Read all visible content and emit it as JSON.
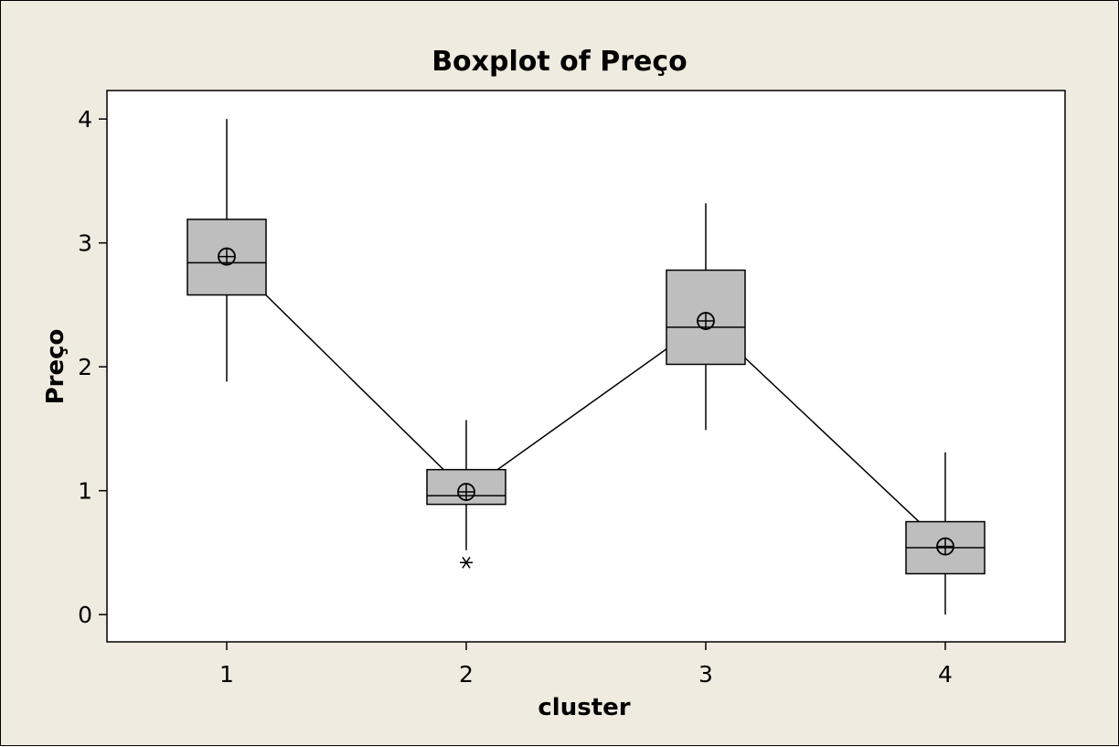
{
  "chart_data": {
    "type": "boxplot",
    "title": "Boxplot of Preço",
    "xlabel": "cluster",
    "ylabel": "Preço",
    "categories": [
      "1",
      "2",
      "3",
      "4"
    ],
    "ylim": [
      -0.22,
      4.23
    ],
    "y_ticks": [
      "0",
      "1",
      "2",
      "3",
      "4"
    ],
    "boxes": [
      {
        "category": "1",
        "whisker_low": 1.88,
        "q1": 2.58,
        "median": 2.84,
        "q3": 3.19,
        "whisker_high": 4.0,
        "mean": 2.89,
        "outliers": []
      },
      {
        "category": "2",
        "whisker_low": 0.52,
        "q1": 0.89,
        "median": 0.96,
        "q3": 1.17,
        "whisker_high": 1.57,
        "mean": 0.99,
        "outliers": [
          0.42
        ]
      },
      {
        "category": "3",
        "whisker_low": 1.49,
        "q1": 2.02,
        "median": 2.32,
        "q3": 2.78,
        "whisker_high": 3.32,
        "mean": 2.37,
        "outliers": []
      },
      {
        "category": "4",
        "whisker_low": 0.0,
        "q1": 0.33,
        "median": 0.54,
        "q3": 0.75,
        "whisker_high": 1.31,
        "mean": 0.55,
        "outliers": []
      }
    ],
    "mean_connect_line": true,
    "grid": false,
    "colors": {
      "background": "#efebe0",
      "plot_area": "#ffffff",
      "box_fill": "#bebebe",
      "line": "#000000"
    }
  }
}
